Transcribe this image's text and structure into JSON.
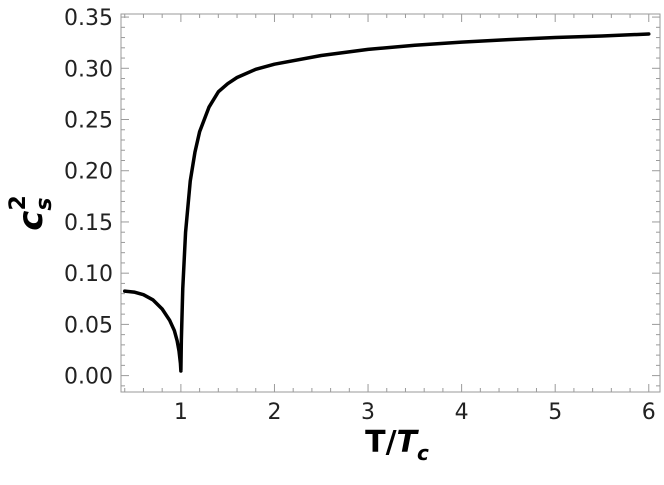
{
  "chart_data": {
    "type": "line",
    "title": "",
    "xlabel": {
      "base": "T/",
      "italic": "T",
      "sub": "c"
    },
    "ylabel": {
      "base": "c",
      "sub": "s",
      "sup": "2"
    },
    "xlim": [
      0.36,
      6.12
    ],
    "ylim": [
      -0.016,
      0.353
    ],
    "xticks": [
      1,
      2,
      3,
      4,
      5,
      6
    ],
    "xtick_labels": [
      "1",
      "2",
      "3",
      "4",
      "5",
      "6"
    ],
    "yticks": [
      0.0,
      0.05,
      0.1,
      0.15,
      0.2,
      0.25,
      0.3,
      0.35
    ],
    "ytick_labels": [
      "0.00",
      "0.05",
      "0.10",
      "0.15",
      "0.20",
      "0.25",
      "0.30",
      "0.35"
    ],
    "grid": false,
    "legend": "none",
    "series": [
      {
        "color": "#000000",
        "x": [
          0.4,
          0.5,
          0.6,
          0.7,
          0.8,
          0.88,
          0.93,
          0.96,
          0.98,
          0.995,
          1.0,
          1.005,
          1.02,
          1.05,
          1.1,
          1.15,
          1.2,
          1.3,
          1.4,
          1.5,
          1.6,
          1.8,
          2.0,
          2.5,
          3.0,
          3.5,
          4.0,
          4.5,
          5.0,
          5.5,
          6.0
        ],
        "y": [
          0.0825,
          0.0815,
          0.079,
          0.074,
          0.065,
          0.054,
          0.044,
          0.034,
          0.024,
          0.012,
          0.0045,
          0.035,
          0.085,
          0.14,
          0.19,
          0.218,
          0.238,
          0.262,
          0.277,
          0.285,
          0.291,
          0.299,
          0.304,
          0.3125,
          0.3185,
          0.3225,
          0.3255,
          0.328,
          0.33,
          0.3315,
          0.3335
        ]
      }
    ]
  }
}
